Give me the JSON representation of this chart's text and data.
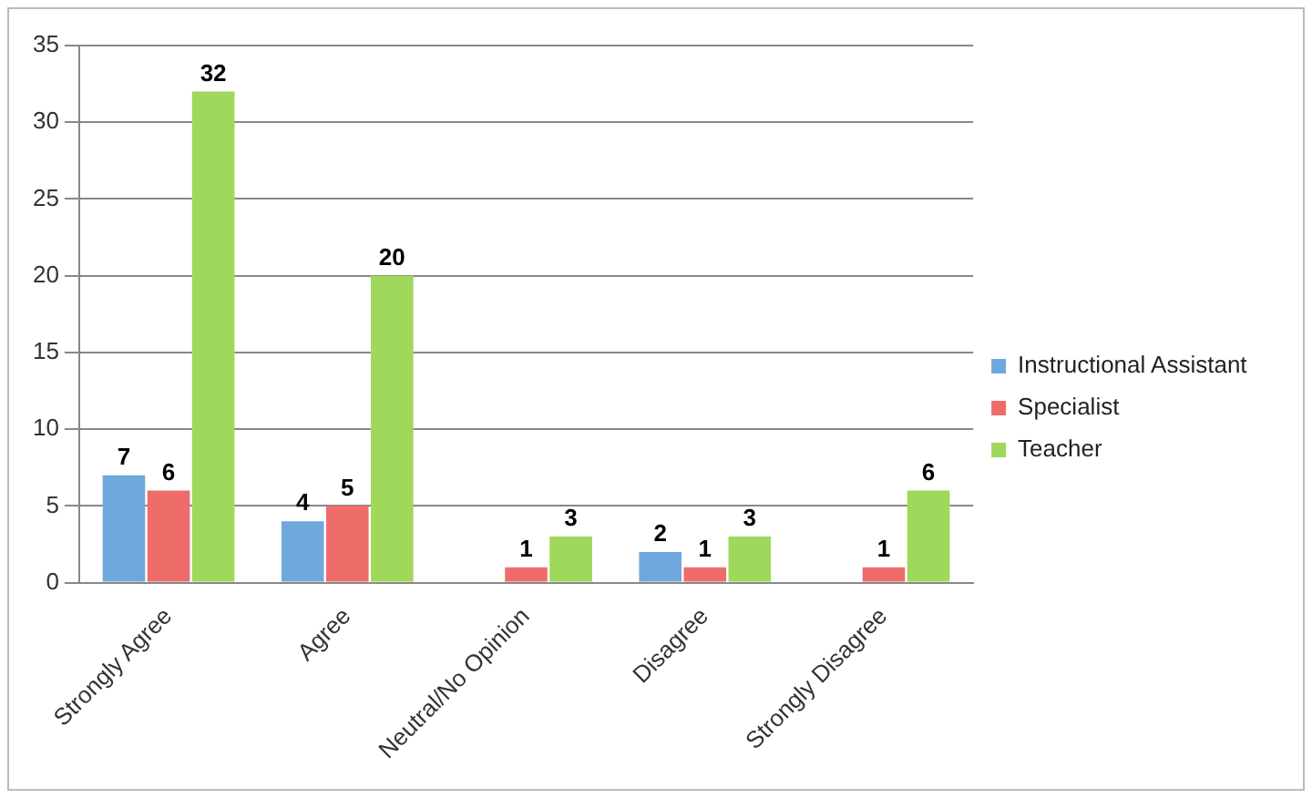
{
  "chart_data": {
    "type": "bar",
    "categories": [
      "Strongly Agree",
      "Agree",
      "Neutral/No Opinion",
      "Disagree",
      "Strongly Disagree"
    ],
    "series": [
      {
        "name": "Instructional Assistant",
        "color": "#6fa8dc",
        "values": [
          7,
          4,
          0,
          2,
          0
        ],
        "value_labels": [
          "7",
          "4",
          null,
          "2",
          null
        ]
      },
      {
        "name": "Specialist",
        "color": "#ee6d6a",
        "values": [
          6,
          5,
          1,
          1,
          1
        ],
        "value_labels": [
          "6",
          "5",
          "1",
          "1",
          "1"
        ]
      },
      {
        "name": "Teacher",
        "color": "#9fd85a",
        "values": [
          32,
          20,
          3,
          3,
          6
        ],
        "value_labels": [
          "32",
          "20",
          "3",
          "3",
          "6"
        ]
      }
    ],
    "ylim": [
      0,
      35
    ],
    "yticks": [
      0,
      5,
      10,
      15,
      20,
      25,
      30,
      35
    ],
    "grid": "y",
    "legend": "right"
  }
}
